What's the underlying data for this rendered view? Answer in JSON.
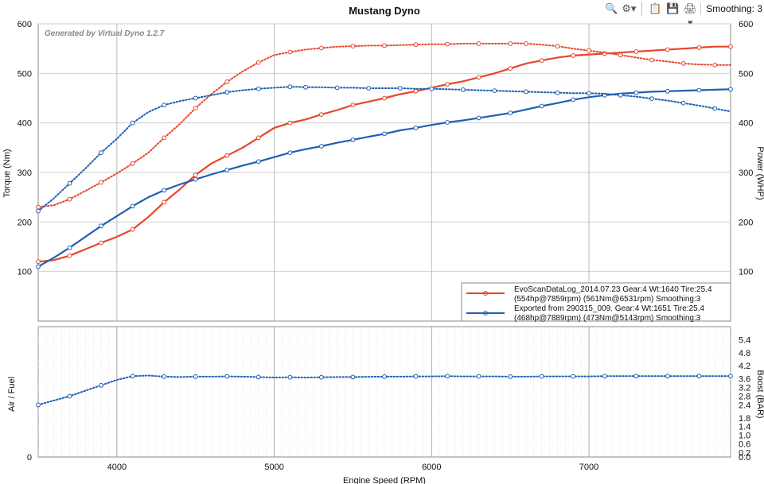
{
  "toolbar": {
    "icons": [
      "zoom-icon",
      "settings-icon",
      "copy-icon",
      "save-icon",
      "print-icon"
    ],
    "smoothing_label": "Smoothing: 3"
  },
  "colors": {
    "red": "#e8452c",
    "blue": "#1e5fb4",
    "grid": "#cfcfcf"
  },
  "chart_data": [
    {
      "type": "line",
      "title": "Mustang Dyno",
      "watermark": "Generated by Virtual Dyno 1.2.7",
      "xlabel": "Engine Speed (RPM)",
      "ylabel": "Torque (Nm)",
      "ylabel_right": "Power (WHP)",
      "xlim": [
        3500,
        7900
      ],
      "ylim": [
        0,
        600
      ],
      "x_ticks": [
        "4000",
        "5000",
        "6000",
        "7000"
      ],
      "y_ticks": [
        "100",
        "200",
        "300",
        "400",
        "500",
        "600"
      ],
      "y_ticks_right": [
        "100",
        "200",
        "300",
        "400",
        "500",
        "600"
      ],
      "legend": [
        {
          "line1": "EvoScanDataLog_2014.07.23 Gear:4 Wt:1640 Tire:25.4",
          "line2": "(554hp@7859rpm) (561Nm@6531rpm) Smoothing:3",
          "color": "#e8452c"
        },
        {
          "line1": "Exported from 290315_009. Gear:4 Wt:1651 Tire:25.4",
          "line2": "(468hp@7889rpm) (473Nm@5143rpm) Smoothing:3",
          "color": "#1e5fb4"
        }
      ],
      "series": [
        {
          "name": "Red Power (WHP)",
          "style": "solid",
          "color": "#e8452c",
          "x": [
            3500,
            3600,
            3700,
            3800,
            3900,
            4000,
            4100,
            4200,
            4300,
            4400,
            4500,
            4600,
            4700,
            4800,
            4900,
            5000,
            5100,
            5200,
            5300,
            5400,
            5500,
            5600,
            5700,
            5800,
            5900,
            6000,
            6100,
            6200,
            6300,
            6400,
            6500,
            6600,
            6700,
            6800,
            6900,
            7000,
            7100,
            7200,
            7300,
            7400,
            7500,
            7600,
            7700,
            7800,
            7900
          ],
          "y": [
            120,
            123,
            132,
            145,
            158,
            170,
            185,
            210,
            240,
            266,
            295,
            318,
            334,
            350,
            370,
            390,
            400,
            407,
            417,
            426,
            436,
            443,
            450,
            458,
            464,
            471,
            478,
            484,
            492,
            500,
            510,
            520,
            526,
            532,
            536,
            538,
            540,
            542,
            544,
            546,
            548,
            550,
            552,
            554,
            554
          ]
        },
        {
          "name": "Red Torque (Nm)",
          "style": "dotted",
          "color": "#e8452c",
          "x": [
            3500,
            3600,
            3700,
            3800,
            3900,
            4000,
            4100,
            4200,
            4300,
            4400,
            4500,
            4600,
            4700,
            4800,
            4900,
            5000,
            5100,
            5200,
            5300,
            5400,
            5500,
            5600,
            5700,
            5800,
            5900,
            6000,
            6100,
            6200,
            6300,
            6400,
            6500,
            6531,
            6600,
            6700,
            6800,
            6900,
            7000,
            7100,
            7200,
            7300,
            7400,
            7500,
            7600,
            7700,
            7800,
            7900
          ],
          "y": [
            230,
            234,
            246,
            263,
            280,
            298,
            318,
            340,
            370,
            398,
            430,
            458,
            483,
            504,
            522,
            537,
            543,
            548,
            551,
            554,
            555,
            556,
            556,
            557,
            558,
            559,
            559,
            560,
            560,
            560,
            560,
            561,
            560,
            558,
            555,
            550,
            546,
            542,
            537,
            532,
            527,
            524,
            520,
            518,
            517,
            517
          ]
        },
        {
          "name": "Blue Power (WHP)",
          "style": "solid",
          "color": "#1e5fb4",
          "x": [
            3500,
            3600,
            3700,
            3800,
            3900,
            4000,
            4100,
            4200,
            4300,
            4400,
            4500,
            4600,
            4700,
            4800,
            4900,
            5000,
            5100,
            5200,
            5300,
            5400,
            5500,
            5600,
            5700,
            5800,
            5900,
            6000,
            6100,
            6200,
            6300,
            6400,
            6500,
            6600,
            6700,
            6800,
            6900,
            7000,
            7100,
            7200,
            7300,
            7400,
            7500,
            7600,
            7700,
            7800,
            7900
          ],
          "y": [
            110,
            128,
            148,
            170,
            192,
            212,
            232,
            250,
            264,
            276,
            286,
            296,
            305,
            314,
            322,
            331,
            340,
            347,
            353,
            360,
            366,
            372,
            378,
            385,
            390,
            396,
            401,
            405,
            410,
            415,
            420,
            427,
            434,
            440,
            447,
            452,
            456,
            459,
            461,
            463,
            464,
            465,
            466,
            467,
            468
          ]
        },
        {
          "name": "Blue Torque (Nm)",
          "style": "dotted",
          "color": "#1e5fb4",
          "x": [
            3500,
            3600,
            3700,
            3800,
            3900,
            4000,
            4100,
            4200,
            4300,
            4400,
            4500,
            4600,
            4700,
            4800,
            4900,
            5000,
            5100,
            5143,
            5200,
            5300,
            5400,
            5500,
            5600,
            5700,
            5800,
            5900,
            6000,
            6100,
            6200,
            6300,
            6400,
            6500,
            6600,
            6700,
            6800,
            6900,
            7000,
            7100,
            7200,
            7300,
            7400,
            7500,
            7600,
            7700,
            7800,
            7900
          ],
          "y": [
            222,
            248,
            278,
            308,
            340,
            368,
            400,
            422,
            436,
            444,
            450,
            456,
            462,
            466,
            469,
            471,
            473,
            473,
            472,
            472,
            471,
            471,
            470,
            470,
            470,
            469,
            469,
            468,
            467,
            466,
            465,
            464,
            463,
            462,
            461,
            460,
            460,
            459,
            456,
            453,
            449,
            445,
            440,
            435,
            429,
            423
          ]
        }
      ]
    },
    {
      "type": "line",
      "ylabel": "Air / Fuel",
      "ylabel_right": "Boost (BAR)",
      "xlabel": "Engine Speed (RPM)",
      "xlim": [
        3500,
        7900
      ],
      "ylim": [
        0,
        6.0
      ],
      "y_ticks_left": [
        "0"
      ],
      "y_ticks_right": [
        "0.0",
        "0.2",
        "0.6",
        "1.0",
        "1.4",
        "1.8",
        "2.4",
        "2.8",
        "3.2",
        "3.6",
        "4.2",
        "4.8",
        "5.4"
      ],
      "series": [
        {
          "name": "Boost (BAR)",
          "style": "dotted",
          "color": "#1e5fb4",
          "x": [
            3500,
            3600,
            3700,
            3800,
            3900,
            4000,
            4100,
            4200,
            4300,
            4400,
            4500,
            4600,
            4700,
            4800,
            4900,
            5000,
            5100,
            5200,
            5300,
            5400,
            5500,
            5600,
            5700,
            5800,
            5900,
            6000,
            6100,
            6200,
            6300,
            6400,
            6500,
            6600,
            6700,
            6800,
            6900,
            7000,
            7100,
            7200,
            7300,
            7400,
            7500,
            7600,
            7700,
            7800,
            7900
          ],
          "y": [
            2.4,
            2.6,
            2.8,
            3.05,
            3.3,
            3.55,
            3.72,
            3.75,
            3.7,
            3.68,
            3.7,
            3.7,
            3.71,
            3.7,
            3.68,
            3.66,
            3.67,
            3.66,
            3.67,
            3.68,
            3.68,
            3.69,
            3.7,
            3.7,
            3.71,
            3.71,
            3.72,
            3.71,
            3.71,
            3.71,
            3.7,
            3.7,
            3.71,
            3.71,
            3.71,
            3.71,
            3.72,
            3.72,
            3.72,
            3.72,
            3.72,
            3.72,
            3.72,
            3.72,
            3.72
          ]
        }
      ]
    }
  ]
}
